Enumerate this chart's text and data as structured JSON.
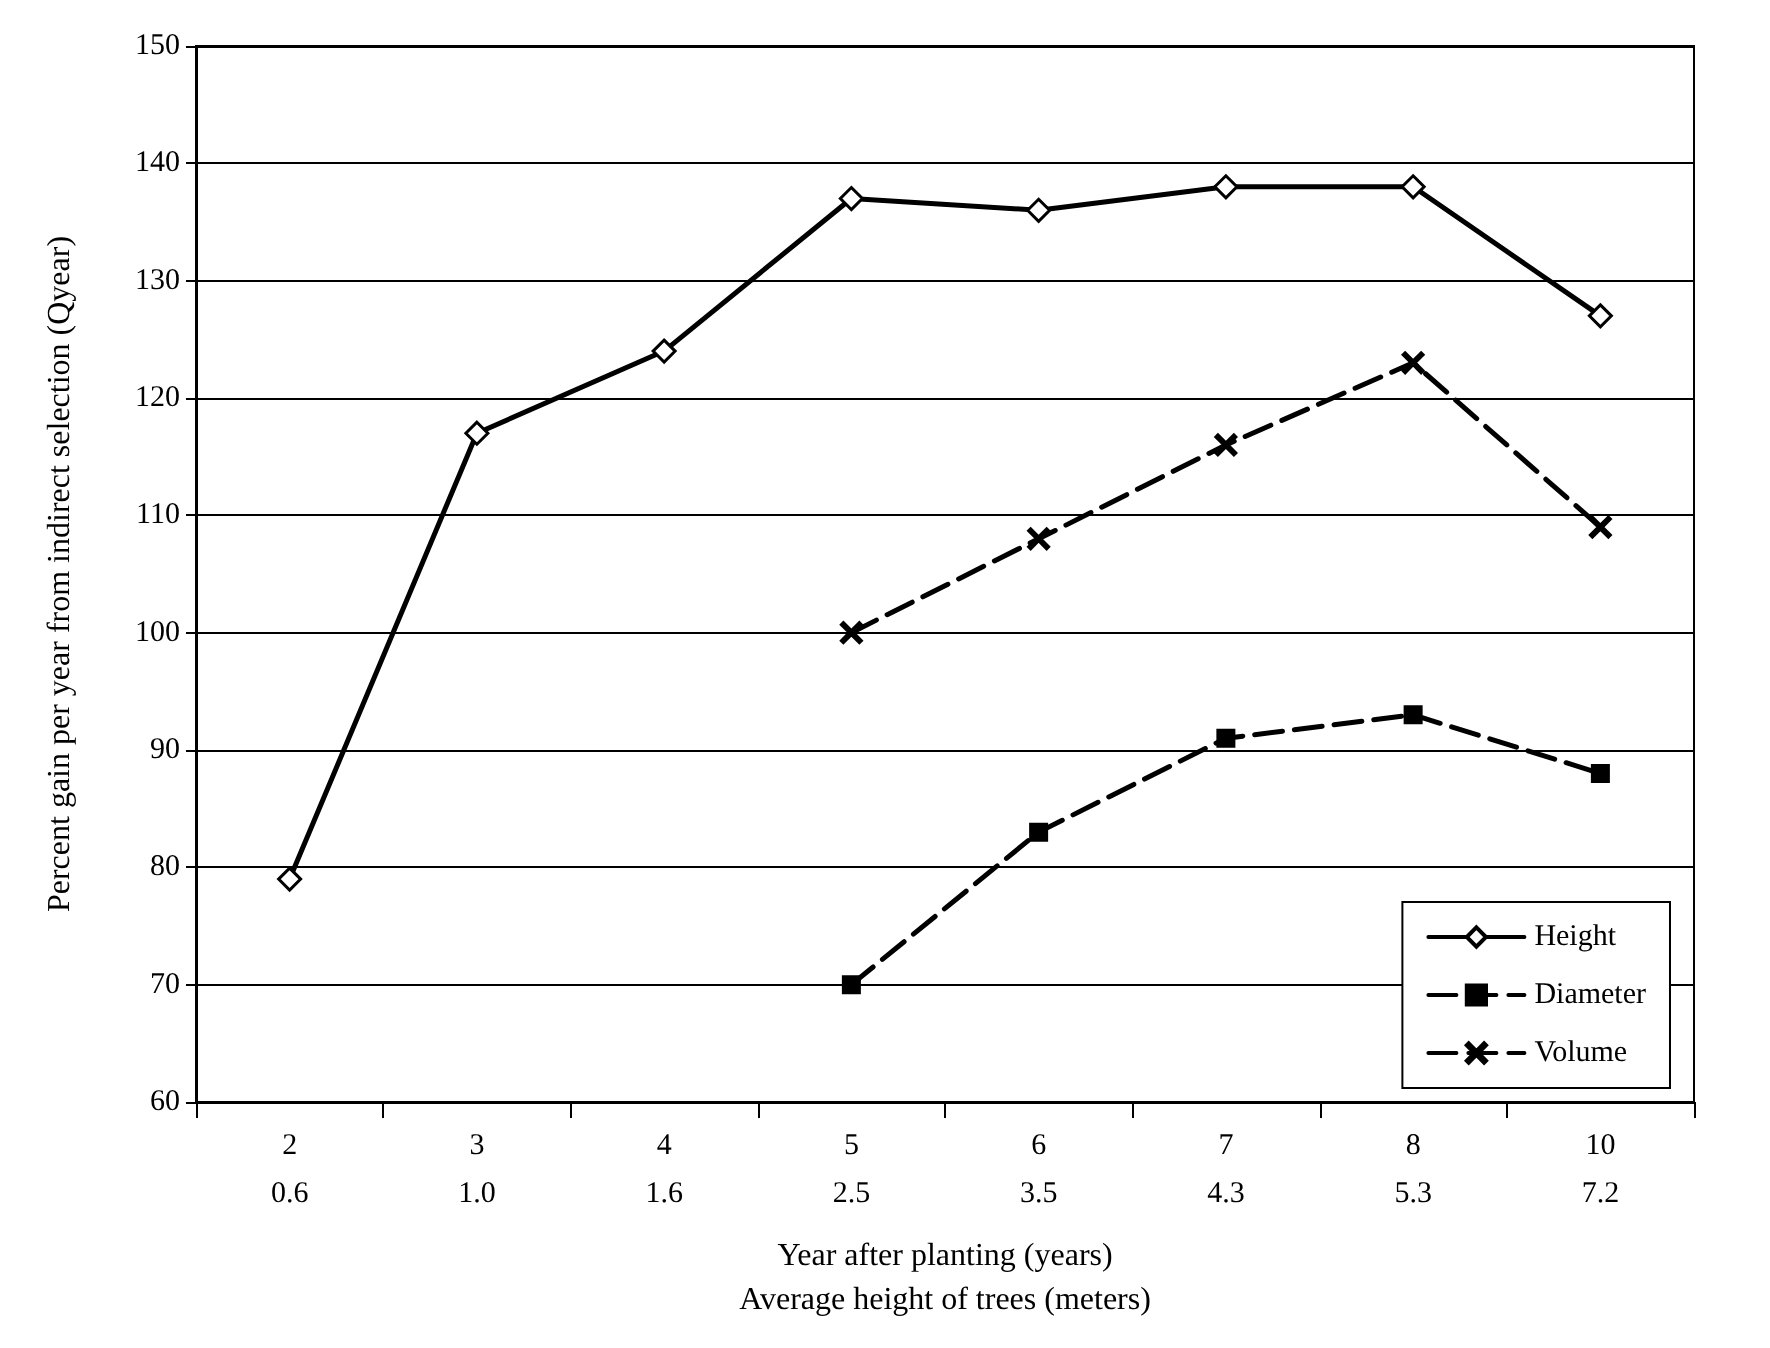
{
  "chart_data": {
    "type": "line",
    "xlabel": "Year after planting (years)\nAverage height of trees (meters)",
    "ylabel": "Percent gain per year from indirect selection (Qyear)",
    "categories": [
      "2\n0.6",
      "3\n1.0",
      "4\n1.6",
      "5\n2.5",
      "6\n3.5",
      "7\n4.3",
      "8\n5.3",
      "10\n7.2"
    ],
    "series": [
      {
        "name": "Height",
        "color": "#000000",
        "marker": "diamond",
        "line_style": "solid",
        "values": [
          79,
          117,
          124,
          137,
          136,
          138,
          138,
          127
        ]
      },
      {
        "name": "Diameter",
        "color": "#000000",
        "marker": "square",
        "line_style": "dashed",
        "values": [
          null,
          null,
          null,
          70,
          83,
          91,
          93,
          88
        ]
      },
      {
        "name": "Volume",
        "color": "#000000",
        "marker": "cross",
        "line_style": "dashed",
        "values": [
          null,
          null,
          null,
          100,
          108,
          116,
          123,
          109
        ]
      }
    ],
    "ylim": [
      60,
      150
    ],
    "yticks": [
      60,
      70,
      80,
      90,
      100,
      110,
      120,
      130,
      140,
      150
    ],
    "grid": "y",
    "legend": "bottom right"
  }
}
